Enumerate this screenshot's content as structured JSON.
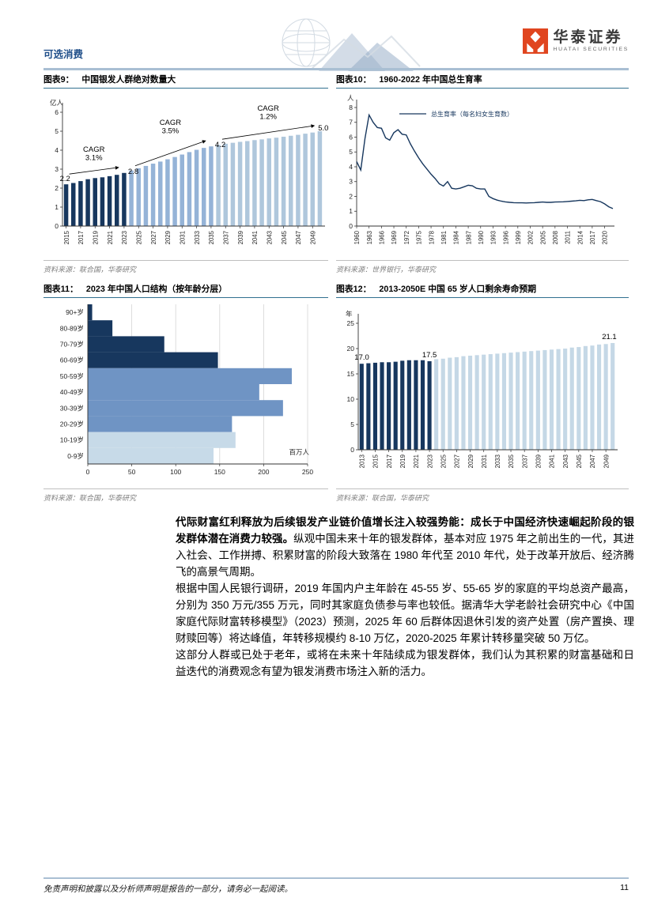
{
  "header": {
    "category": "可选消费",
    "brand_cn": "华泰证券",
    "brand_en": "HUATAI SECURITIES"
  },
  "figures": [
    {
      "label": "图表9：",
      "title": "中国银发人群绝对数量大",
      "source": "资料来源：联合国，华泰研究"
    },
    {
      "label": "图表10：",
      "title": "1960-2022 年中国总生育率",
      "source": "资料来源：世界银行，华泰研究"
    },
    {
      "label": "图表11：",
      "title": "2023 年中国人口结构（按年龄分层）",
      "source": "资料来源：联合国，华泰研究"
    },
    {
      "label": "图表12：",
      "title": "2013-2050E 中国 65 岁人口剩余寿命预期",
      "source": "资料来源：联合国，华泰研究"
    }
  ],
  "chart_data": [
    {
      "id": "fig9",
      "type": "bar",
      "title": "中国银发人群绝对数量大",
      "ylabel": "亿人",
      "ylim": [
        0,
        6
      ],
      "yticks": [
        0,
        1,
        2,
        3,
        4,
        5,
        6
      ],
      "categories": [
        2015,
        2016,
        2017,
        2018,
        2019,
        2020,
        2021,
        2022,
        2023,
        2024,
        2025,
        2026,
        2027,
        2028,
        2029,
        2030,
        2031,
        2032,
        2033,
        2034,
        2035,
        2036,
        2037,
        2038,
        2039,
        2040,
        2041,
        2042,
        2043,
        2044,
        2045,
        2046,
        2047,
        2048,
        2049,
        2050
      ],
      "values": [
        2.2,
        2.27,
        2.37,
        2.47,
        2.53,
        2.57,
        2.63,
        2.7,
        2.8,
        2.93,
        3.05,
        3.17,
        3.29,
        3.4,
        3.52,
        3.64,
        3.77,
        3.9,
        4.02,
        4.12,
        4.2,
        4.28,
        4.34,
        4.39,
        4.44,
        4.48,
        4.53,
        4.57,
        4.62,
        4.66,
        4.71,
        4.76,
        4.81,
        4.87,
        4.93,
        5.0
      ],
      "segments": [
        {
          "end": 9,
          "color": "#17375E"
        },
        {
          "end": 21,
          "color": "#95B3D7"
        },
        {
          "end": 36,
          "color": "#AFC7DC"
        }
      ],
      "point_labels": [
        {
          "i": 0,
          "text": "2.2"
        },
        {
          "i": 8,
          "text": "2.8"
        },
        {
          "i": 20,
          "text": "4.2"
        },
        {
          "i": 35,
          "text": "5.0"
        }
      ],
      "annotations": [
        {
          "from": 0,
          "to": 8,
          "lines": [
            "CAGR",
            "3.1%"
          ]
        },
        {
          "from": 8,
          "to": 20,
          "lines": [
            "CAGR",
            "3.5%"
          ]
        },
        {
          "from": 20,
          "to": 35,
          "lines": [
            "CAGR",
            "1.2%"
          ]
        }
      ],
      "xtick_step": 2
    },
    {
      "id": "fig10",
      "type": "line",
      "title": "1960-2022 年中国总生育率",
      "legend": "总生育率（每名妇女生育数）",
      "ylabel": "人",
      "ylim": [
        0,
        8
      ],
      "yticks": [
        0,
        1,
        2,
        3,
        4,
        5,
        6,
        7,
        8
      ],
      "x_start": 1960,
      "x_end": 2022,
      "xticks": [
        1960,
        1963,
        1966,
        1969,
        1972,
        1975,
        1978,
        1981,
        1984,
        1987,
        1990,
        1993,
        1996,
        1999,
        2002,
        2005,
        2008,
        2011,
        2014,
        2017,
        2020
      ],
      "values": [
        4.35,
        3.78,
        5.9,
        7.5,
        7.0,
        6.65,
        6.6,
        5.95,
        5.8,
        6.3,
        6.5,
        6.2,
        6.15,
        5.55,
        5.05,
        4.6,
        4.2,
        3.85,
        3.5,
        3.2,
        2.85,
        2.7,
        3.0,
        2.55,
        2.5,
        2.55,
        2.65,
        2.75,
        2.72,
        2.55,
        2.5,
        2.5,
        2.0,
        1.85,
        1.75,
        1.68,
        1.63,
        1.6,
        1.58,
        1.57,
        1.57,
        1.56,
        1.57,
        1.58,
        1.6,
        1.62,
        1.6,
        1.6,
        1.62,
        1.63,
        1.64,
        1.66,
        1.68,
        1.7,
        1.74,
        1.72,
        1.77,
        1.8,
        1.72,
        1.65,
        1.5,
        1.3,
        1.18
      ],
      "color": "#17375E"
    },
    {
      "id": "fig11",
      "type": "hbar",
      "title": "2023 年中国人口结构（按年龄分层）",
      "xlabel": "百万人",
      "xlim": [
        0,
        250
      ],
      "xticks": [
        0,
        50,
        100,
        150,
        200,
        250
      ],
      "categories": [
        "90+岁",
        "80-89岁",
        "70-79岁",
        "60-69岁",
        "50-59岁",
        "40-49岁",
        "30-39岁",
        "20-29岁",
        "10-19岁",
        "0-9岁"
      ],
      "values": [
        5,
        28,
        87,
        148,
        232,
        195,
        222,
        164,
        168,
        143
      ],
      "segments": [
        {
          "end": 4,
          "color": "#17375E"
        },
        {
          "end": 8,
          "color": "#6F94C4"
        },
        {
          "end": 10,
          "color": "#C7DAE8"
        }
      ]
    },
    {
      "id": "fig12",
      "type": "bar",
      "title": "2013-2050E 中国 65 岁人口剩余寿命预期",
      "ylabel": "年",
      "ylim": [
        0,
        25
      ],
      "yticks": [
        0,
        5,
        10,
        15,
        20,
        25
      ],
      "categories": [
        2013,
        2014,
        2015,
        2016,
        2017,
        2018,
        2019,
        2020,
        2021,
        2022,
        2023,
        2024,
        2025,
        2026,
        2027,
        2028,
        2029,
        2030,
        2031,
        2032,
        2033,
        2034,
        2035,
        2036,
        2037,
        2038,
        2039,
        2040,
        2041,
        2042,
        2043,
        2044,
        2045,
        2046,
        2047,
        2048,
        2049,
        2050
      ],
      "values": [
        17.0,
        17.1,
        17.2,
        17.3,
        17.3,
        17.4,
        17.6,
        17.7,
        17.7,
        17.7,
        17.5,
        17.9,
        18.0,
        18.2,
        18.3,
        18.5,
        18.6,
        18.7,
        18.8,
        18.9,
        19.0,
        19.1,
        19.2,
        19.3,
        19.4,
        19.5,
        19.6,
        19.7,
        19.8,
        19.9,
        20.0,
        20.2,
        20.3,
        20.5,
        20.6,
        20.8,
        20.9,
        21.1
      ],
      "segments": [
        {
          "end": 11,
          "color": "#17375E"
        },
        {
          "end": 38,
          "color": "#C5D8E6"
        }
      ],
      "point_labels": [
        {
          "i": 0,
          "text": "17.0"
        },
        {
          "i": 10,
          "text": "17.5"
        },
        {
          "i": 37,
          "text": "21.1"
        }
      ],
      "xtick_step": 2
    }
  ],
  "body": {
    "p1_bold": "代际财富红利释放为后续银发产业链价值增长注入较强势能：成长于中国经济快速崛起阶段的银发群体潜在消费力较强。",
    "p1_rest": "纵观中国未来十年的银发群体，基本对应 1975 年之前出生的一代，其进入社会、工作拼搏、积累财富的阶段大致落在 1980 年代至 2010 年代，处于改革开放后、经济腾飞的高景气周期。",
    "p2": "根据中国人民银行调研，2019 年国内户主年龄在 45-55 岁、55-65 岁的家庭的平均总资产最高，分别为 350 万元/355 万元，同时其家庭负债参与率也较低。据清华大学老龄社会研究中心《中国家庭代际财富转移模型》（2023）预测，2025 年 60 后群体因退休引发的资产处置（房产置换、理财赎回等）将达峰值，年转移规模约 8-10 万亿，2020-2025 年累计转移量突破 50 万亿。",
    "p3": "这部分人群或已处于老年，或将在未来十年陆续成为银发群体，我们认为其积累的财富基础和日益迭代的消费观念有望为银发消费市场注入新的活力。"
  },
  "footer": {
    "disclaimer": "免责声明和披露以及分析师声明是报告的一部分，请务必一起阅读。",
    "page_number": "11"
  }
}
